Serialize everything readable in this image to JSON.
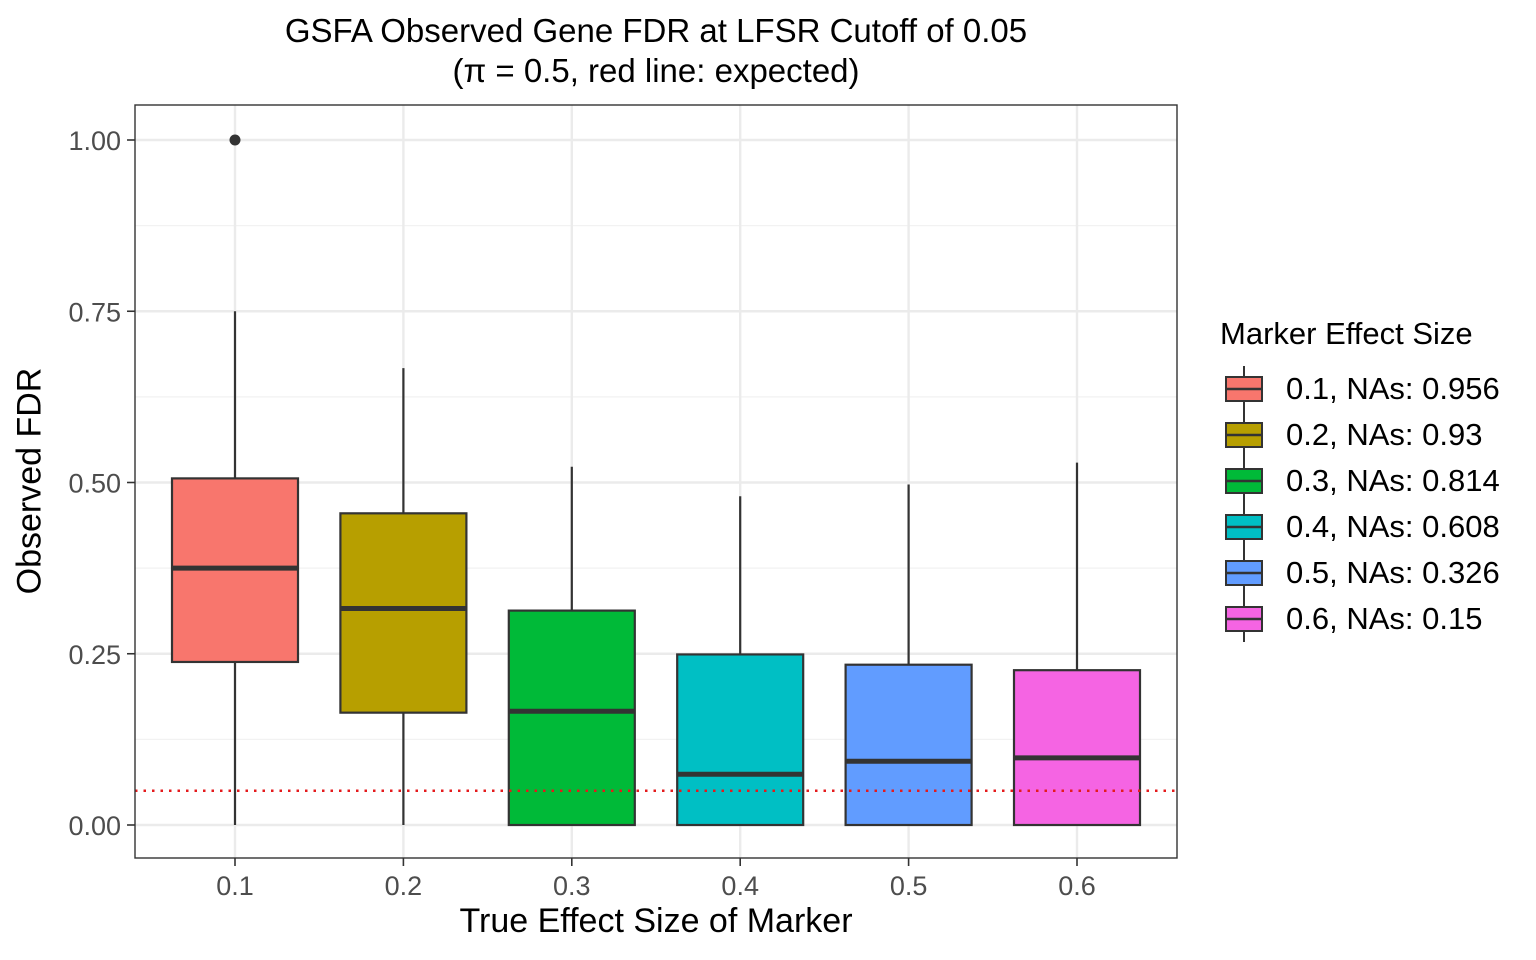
{
  "chart_data": {
    "type": "box",
    "title": "GSFA Observed Gene FDR at LFSR Cutoff of 0.05",
    "subtitle": "(π = 0.5, red line: expected)",
    "xlabel": "True Effect Size of Marker",
    "ylabel": "Observed FDR",
    "ylim": [
      -0.05,
      1.05
    ],
    "y_ticks": [
      "0.00",
      "0.25",
      "0.50",
      "0.75",
      "1.00"
    ],
    "y_tick_values": [
      0,
      0.25,
      0.5,
      0.75,
      1.0
    ],
    "categories": [
      "0.1",
      "0.2",
      "0.3",
      "0.4",
      "0.5",
      "0.6"
    ],
    "grid": true,
    "reference_line": {
      "y": 0.05,
      "color": "#e41a1c",
      "style": "dotted"
    },
    "legend_title": "Marker Effect Size",
    "legend_position": "right",
    "series": [
      {
        "name": "0.1, NAs: 0.956",
        "color": "#F8766D",
        "min": 0.0,
        "q1": 0.238,
        "median": 0.375,
        "q3": 0.506,
        "max": 0.75,
        "outliers": [
          1.0
        ]
      },
      {
        "name": "0.2, NAs: 0.93",
        "color": "#B79F00",
        "min": 0.0,
        "q1": 0.164,
        "median": 0.316,
        "q3": 0.455,
        "max": 0.667,
        "outliers": []
      },
      {
        "name": "0.3, NAs: 0.814",
        "color": "#00BA38",
        "min": 0.0,
        "q1": 0.0,
        "median": 0.166,
        "q3": 0.313,
        "max": 0.523,
        "outliers": []
      },
      {
        "name": "0.4, NAs: 0.608",
        "color": "#00BFC4",
        "min": 0.0,
        "q1": 0.0,
        "median": 0.074,
        "q3": 0.249,
        "max": 0.48,
        "outliers": []
      },
      {
        "name": "0.5, NAs: 0.326",
        "color": "#619CFF",
        "min": 0.0,
        "q1": 0.0,
        "median": 0.093,
        "q3": 0.234,
        "max": 0.497,
        "outliers": []
      },
      {
        "name": "0.6, NAs: 0.15",
        "color": "#F564E3",
        "min": 0.0,
        "q1": 0.0,
        "median": 0.098,
        "q3": 0.226,
        "max": 0.529,
        "outliers": []
      }
    ]
  }
}
